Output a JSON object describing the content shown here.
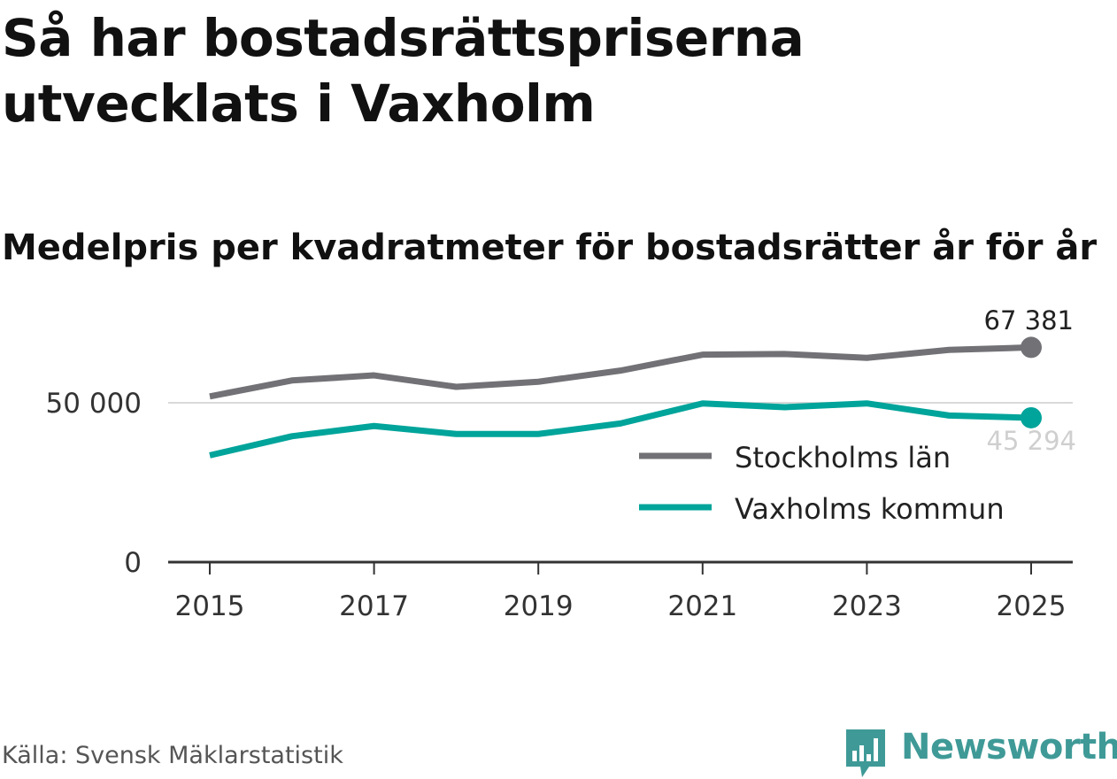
{
  "header": {
    "title": "Så har bostadsrättspriserna utvecklats i Vaxholm",
    "subtitle": "Medelpris per kvadratmeter för bostadsrätter år för år"
  },
  "footer": {
    "source": "Källa: Svensk Mäklarstatistik",
    "brand": "Newsworthy"
  },
  "colors": {
    "stockholm": "#727176",
    "vaxholm": "#00a49a",
    "gridline": "#d9d9d9",
    "axis": "#333333",
    "brand": "#3f9a97"
  },
  "chart_data": {
    "type": "line",
    "title": "Medelpris per kvadratmeter för bostadsrätter år för år",
    "xlabel": "",
    "ylabel": "",
    "x": [
      2015,
      2016,
      2017,
      2018,
      2019,
      2020,
      2021,
      2022,
      2023,
      2024,
      2025
    ],
    "x_ticks": [
      2015,
      2017,
      2019,
      2021,
      2023,
      2025
    ],
    "x_tick_labels": [
      "2015",
      "2017",
      "2019",
      "2021",
      "2023",
      "2025"
    ],
    "y_ticks": [
      0,
      50000
    ],
    "y_tick_labels": [
      "0",
      "50 000"
    ],
    "ylim": [
      0,
      68000
    ],
    "xlim": [
      2014.5,
      2025.5
    ],
    "grid": true,
    "legend_position": "right",
    "series": [
      {
        "name": "Stockholms län",
        "color_key": "stockholm",
        "values": [
          52000,
          57000,
          58600,
          55000,
          56600,
          60100,
          65100,
          65300,
          64100,
          66600,
          67381
        ],
        "end_label": "67 381"
      },
      {
        "name": "Vaxholms kommun",
        "color_key": "vaxholm",
        "values": [
          33500,
          39500,
          42700,
          40200,
          40200,
          43500,
          49800,
          48600,
          49800,
          46000,
          45294
        ],
        "end_label": "45 294"
      }
    ]
  }
}
